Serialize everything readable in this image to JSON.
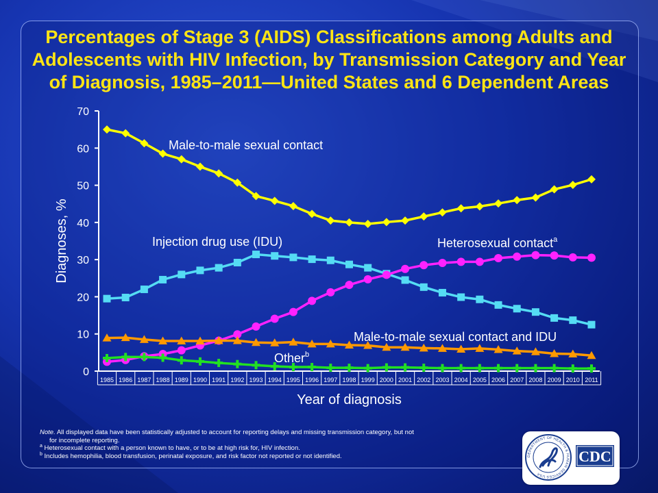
{
  "title": {
    "line1": "Percentages of Stage 3 (AIDS) Classifications among Adults and",
    "line2": "Adolescents with HIV Infection, by Transmission Category and Year",
    "line3": "of Diagnosis, 1985–2011—United States and 6 Dependent Areas"
  },
  "chart_data": {
    "type": "line",
    "title": "Percentages of Stage 3 (AIDS) Classifications among Adults and Adolescents with HIV Infection, by Transmission Category and Year of Diagnosis, 1985–2011—United States and 6 Dependent Areas",
    "xlabel": "Year of diagnosis",
    "ylabel": "Diagnoses, %",
    "ylim": [
      0,
      70
    ],
    "yticks": [
      "0",
      "10",
      "20",
      "30",
      "40",
      "50",
      "60",
      "70"
    ],
    "x": [
      "1985",
      "1986",
      "1987",
      "1988",
      "1989",
      "1990",
      "1991",
      "1992",
      "1993",
      "1994",
      "1995",
      "1996",
      "1997",
      "1998",
      "1999",
      "2000",
      "2001",
      "2002",
      "2003",
      "2004",
      "2005",
      "2006",
      "2007",
      "2008",
      "2009",
      "2010",
      "2011"
    ],
    "series": [
      {
        "name": "Male-to-male sexual contact",
        "color": "#ffff00",
        "marker": "diamond",
        "values": [
          65,
          64,
          61.3,
          58.5,
          57,
          55,
          53.2,
          50.7,
          47.1,
          45.8,
          44.4,
          42.3,
          40.5,
          40,
          39.6,
          40.1,
          40.5,
          41.6,
          42.7,
          43.8,
          44.3,
          45.1,
          46,
          46.7,
          48.9,
          50.1,
          51.6
        ]
      },
      {
        "name": "Injection drug use (IDU)",
        "color": "#55dcf4",
        "marker": "square",
        "values": [
          19.5,
          19.8,
          22,
          24.6,
          26,
          27.1,
          27.8,
          29.2,
          31.4,
          31,
          30.6,
          30.1,
          29.8,
          28.7,
          27.8,
          26.2,
          24.5,
          22.6,
          21.1,
          19.9,
          19.3,
          17.8,
          16.8,
          15.9,
          14.3,
          13.7,
          12.5
        ]
      },
      {
        "name": "Heterosexual contact",
        "sup": "a",
        "color": "#ff22ff",
        "marker": "circle",
        "values": [
          2.5,
          3,
          4,
          4.6,
          5.6,
          6.9,
          8.2,
          9.9,
          12,
          14.1,
          15.9,
          18.9,
          21.2,
          23.2,
          24.7,
          25.9,
          27.5,
          28.5,
          29.1,
          29.4,
          29.4,
          30.4,
          30.8,
          31.2,
          31.1,
          30.6,
          30.5
        ]
      },
      {
        "name": "Male-to-male sexual contact and IDU",
        "color": "#ff9900",
        "marker": "triangle",
        "values": [
          8.9,
          9,
          8.5,
          8.1,
          8.1,
          8.1,
          8.2,
          8.2,
          7.7,
          7.6,
          7.8,
          7.3,
          7.3,
          7,
          6.9,
          6.4,
          6.4,
          6.2,
          6.1,
          5.9,
          6.1,
          5.8,
          5.4,
          5.2,
          4.7,
          4.6,
          4.2
        ]
      },
      {
        "name": "Other",
        "sup": "b",
        "color": "#22e022",
        "marker": "plus",
        "values": [
          3.5,
          3.8,
          3.8,
          3.6,
          2.9,
          2.6,
          2.2,
          1.9,
          1.6,
          1.3,
          1.1,
          1.1,
          0.9,
          0.9,
          0.8,
          1,
          1,
          0.9,
          0.8,
          0.8,
          0.8,
          0.8,
          0.8,
          0.8,
          0.8,
          0.7,
          0.7
        ]
      }
    ]
  },
  "notes": {
    "note_label": "Note.",
    "note_text": "All displayed data have been statistically adjusted to account for reporting delays and missing transmission category, but not",
    "note_text_cont": "for incomplete reporting.",
    "a_mark": "a",
    "a_text": "Heterosexual contact with a person known to have, or to be at high risk for, HIV infection.",
    "b_mark": "b",
    "b_text": "Includes hemophilia, blood transfusion, perinatal exposure, and risk factor not reported or not identified."
  },
  "logo": {
    "cdc_text": "CDC",
    "seal_ring_text": "DEPARTMENT OF HEALTH & HUMAN SERVICES USA"
  },
  "colors": {
    "title": "#ffe514",
    "axis": "#ffffff",
    "background": "#1634b0"
  }
}
